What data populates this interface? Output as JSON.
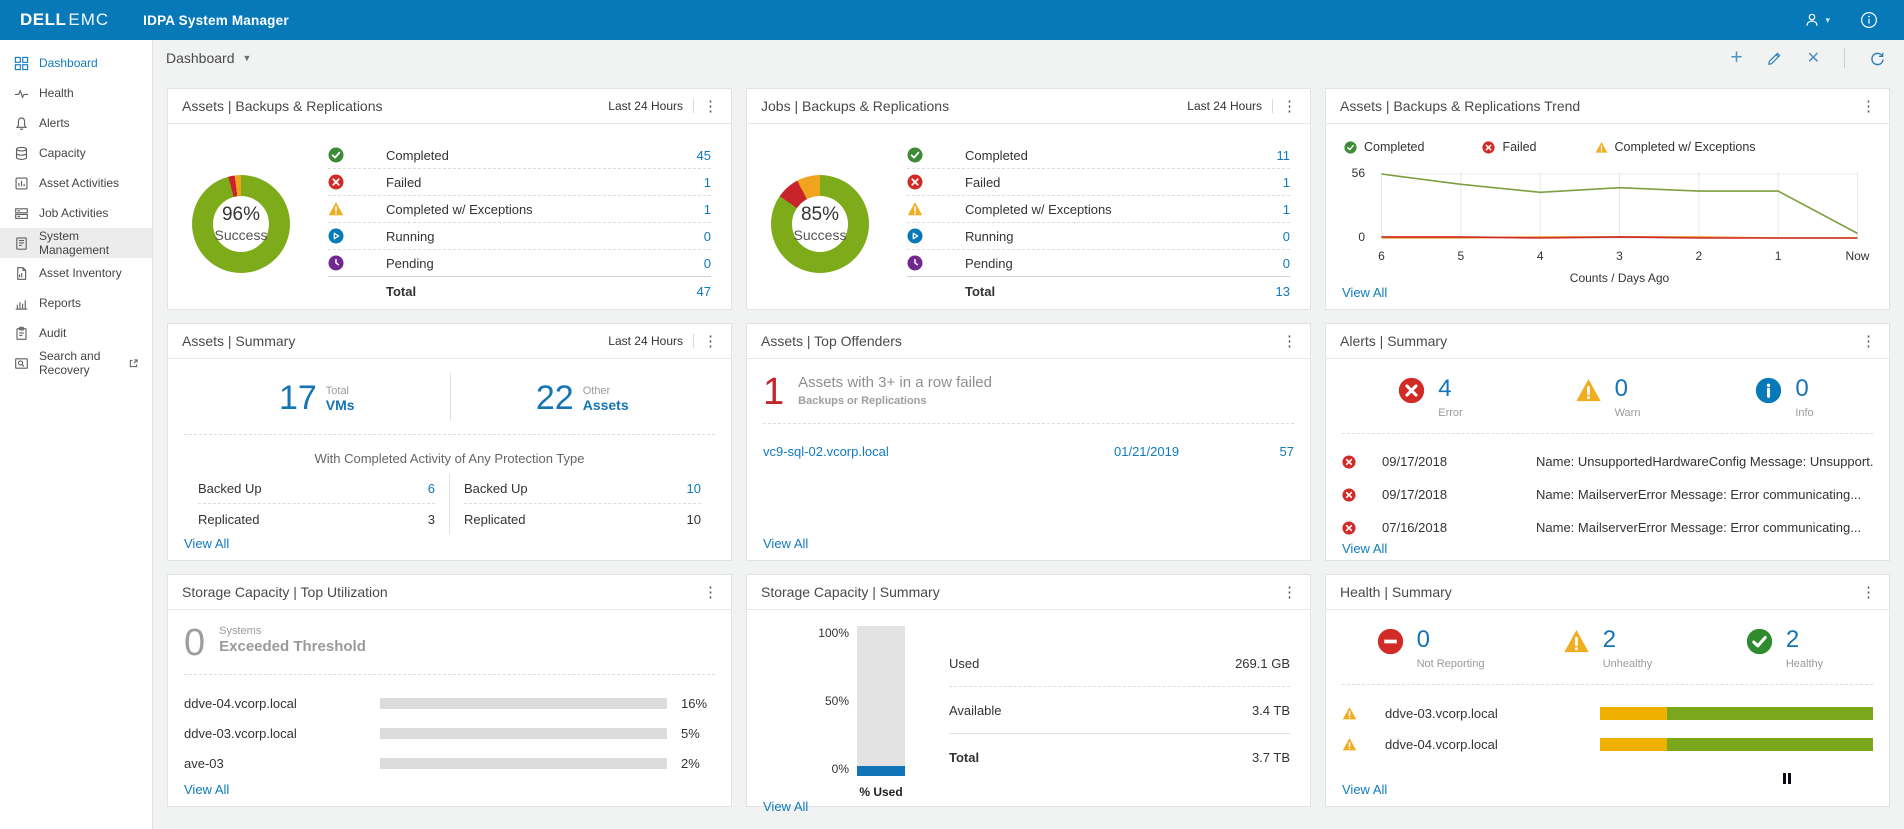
{
  "colors": {
    "brand-blue": "#0779b8",
    "link-blue": "#0f7bbd",
    "number-blue": "#1474b4",
    "green": "#3d8b37",
    "red": "#d02b27",
    "amber": "#f0ad1f",
    "purple": "#71298f",
    "big-red": "#c4262e",
    "bar-blue": "#1274b8",
    "bar-amber": "#f0b000",
    "bar-green": "#7aa71b"
  },
  "header": {
    "brand_dell": "DELL",
    "brand_emc": "EMC",
    "app_title": "IDPA System Manager"
  },
  "toolbar": {
    "view": "Dashboard"
  },
  "sidebar": {
    "items": [
      {
        "label": "Dashboard"
      },
      {
        "label": "Health"
      },
      {
        "label": "Alerts"
      },
      {
        "label": "Capacity"
      },
      {
        "label": "Asset Activities"
      },
      {
        "label": "Job Activities"
      },
      {
        "label": "System Management"
      },
      {
        "label": "Asset Inventory"
      },
      {
        "label": "Reports"
      },
      {
        "label": "Audit"
      },
      {
        "label": "Search and Recovery"
      }
    ]
  },
  "cards": {
    "assets_br": {
      "title": "Assets | Backups & Replications",
      "timeframe": "Last 24 Hours",
      "donut": {
        "percent": "96%",
        "caption": "Success",
        "segments": [
          {
            "color": "#7dab19",
            "pct": 95.8
          },
          {
            "color": "#c9242c",
            "pct": 2.1
          },
          {
            "color": "#f0a41e",
            "pct": 2.1
          }
        ]
      },
      "rows": [
        {
          "label": "Completed",
          "value": "45"
        },
        {
          "label": "Failed",
          "value": "1"
        },
        {
          "label": "Completed w/ Exceptions",
          "value": "1"
        },
        {
          "label": "Running",
          "value": "0"
        },
        {
          "label": "Pending",
          "value": "0"
        }
      ],
      "total_label": "Total",
      "total_value": "47"
    },
    "jobs_br": {
      "title": "Jobs | Backups & Replications",
      "timeframe": "Last 24 Hours",
      "donut": {
        "percent": "85%",
        "caption": "Success",
        "segments": [
          {
            "color": "#7dab19",
            "pct": 84.6
          },
          {
            "color": "#c9242c",
            "pct": 7.7
          },
          {
            "color": "#f0a41e",
            "pct": 7.7
          }
        ]
      },
      "rows": [
        {
          "label": "Completed",
          "value": "11"
        },
        {
          "label": "Failed",
          "value": "1"
        },
        {
          "label": "Completed w/ Exceptions",
          "value": "1"
        },
        {
          "label": "Running",
          "value": "0"
        },
        {
          "label": "Pending",
          "value": "0"
        }
      ],
      "total_label": "Total",
      "total_value": "13"
    },
    "trend": {
      "title": "Assets | Backups & Replications Trend",
      "legend": [
        "Completed",
        "Failed",
        "Completed w/ Exceptions"
      ],
      "chart_data": {
        "type": "line",
        "x": [
          "6",
          "5",
          "4",
          "3",
          "2",
          "1",
          "Now"
        ],
        "ymax": 56,
        "yticks": [
          "56",
          "0"
        ],
        "xlabel": "Counts / Days Ago",
        "series": [
          {
            "name": "Completed",
            "color": "#7f9e3f",
            "values": [
              56,
              47,
              40,
              44,
              41,
              41,
              4
            ]
          },
          {
            "name": "Failed",
            "color": "#d02b27",
            "values": [
              1,
              1,
              0,
              1,
              0,
              0,
              0
            ]
          },
          {
            "name": "Completed w/ Exceptions",
            "color": "#e8a33d",
            "values": [
              0,
              0,
              1,
              1,
              1,
              0,
              0
            ]
          }
        ]
      },
      "view_all": "View All"
    },
    "assets_summary": {
      "title": "Assets | Summary",
      "timeframe": "Last 24 Hours",
      "stats": [
        {
          "value": "17",
          "sub_top": "Total",
          "sub_bottom": "VMs"
        },
        {
          "value": "22",
          "sub_top": "Other",
          "sub_bottom": "Assets"
        }
      ],
      "caption": "With Completed Activity of Any Protection Type",
      "left_rows": [
        {
          "label": "Backed Up",
          "value": "6"
        },
        {
          "label": "Replicated",
          "value": "3"
        }
      ],
      "right_rows": [
        {
          "label": "Backed Up",
          "value": "10"
        },
        {
          "label": "Replicated",
          "value": "10"
        }
      ],
      "view_all": "View All"
    },
    "top_offenders": {
      "title": "Assets | Top Offenders",
      "stat_value": "1",
      "stat_line1": "Assets with 3+ in a row failed",
      "stat_line2": "Backups or Replications",
      "rows": [
        {
          "name": "vc9-sql-02.vcorp.local",
          "date": "01/21/2019",
          "count": "57"
        }
      ],
      "view_all": "View All"
    },
    "alerts_summary": {
      "title": "Alerts | Summary",
      "stats": [
        {
          "value": "4",
          "label": "Error"
        },
        {
          "value": "0",
          "label": "Warn"
        },
        {
          "value": "0",
          "label": "Info"
        }
      ],
      "rows": [
        {
          "date": "09/17/2018",
          "message": "Name: UnsupportedHardwareConfig Message: Unsupport..."
        },
        {
          "date": "09/17/2018",
          "message": "Name: MailserverError Message: Error communicating..."
        },
        {
          "date": "07/16/2018",
          "message": "Name: MailserverError Message: Error communicating..."
        }
      ],
      "view_all": "View All"
    },
    "storage_top": {
      "title": "Storage Capacity | Top Utilization",
      "stat_value": "0",
      "stat_line1": "Systems",
      "stat_line2": "Exceeded Threshold",
      "bars": [
        {
          "name": "ddve-04.vcorp.local",
          "pct": 16,
          "label": "16%"
        },
        {
          "name": "ddve-03.vcorp.local",
          "pct": 5,
          "label": "5%"
        },
        {
          "name": "ave-03",
          "pct": 2,
          "label": "2%"
        }
      ],
      "view_all": "View All"
    },
    "storage_summary": {
      "title": "Storage Capacity | Summary",
      "chart": {
        "yticks": [
          "100%",
          "50%",
          "0%"
        ],
        "xlabel": "% Used",
        "used_pct": 7
      },
      "rows": [
        {
          "label": "Used",
          "value": "269.1 GB"
        },
        {
          "label": "Available",
          "value": "3.4 TB"
        },
        {
          "label": "Total",
          "value": "3.7 TB"
        }
      ],
      "view_all": "View All"
    },
    "health_summary": {
      "title": "Health | Summary",
      "stats": [
        {
          "value": "0",
          "label": "Not Reporting"
        },
        {
          "value": "2",
          "label": "Unhealthy"
        },
        {
          "value": "2",
          "label": "Healthy"
        }
      ],
      "rows": [
        {
          "name": "ddve-03.vcorp.local",
          "amber_pct": 24.5,
          "green_pct": 75.5
        },
        {
          "name": "ddve-04.vcorp.local",
          "amber_pct": 24.5,
          "green_pct": 75.5
        }
      ],
      "view_all": "View All"
    }
  }
}
